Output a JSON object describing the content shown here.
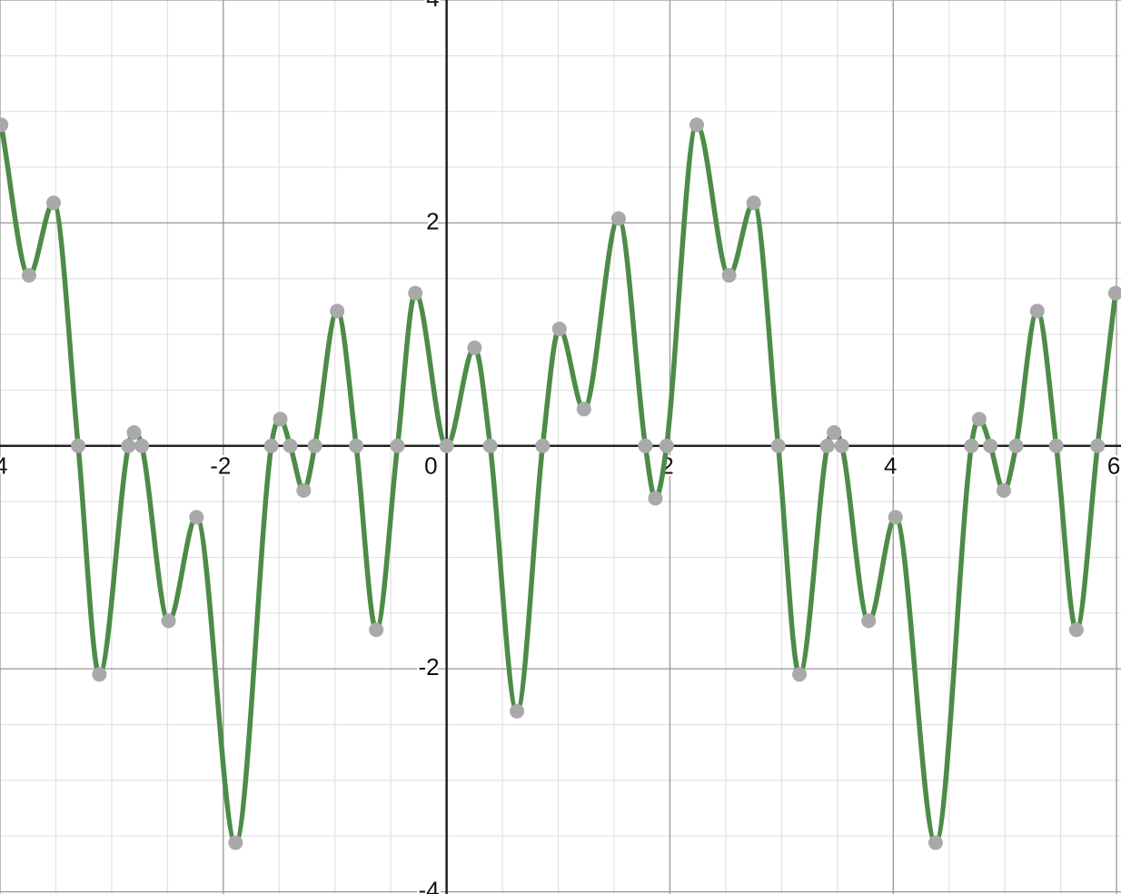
{
  "chart_data": {
    "type": "line",
    "xlim": [
      -4,
      6.04
    ],
    "ylim": [
      -4.02,
      4.0
    ],
    "xticks": [
      -4,
      -2,
      0,
      2,
      4,
      6
    ],
    "yticks": [
      -4,
      -2,
      0,
      2,
      4
    ],
    "grid": true,
    "series": [
      {
        "color": "#4c8c47",
        "point_color": "#a9a9a9",
        "x": [
          -3.99,
          -3.74,
          -3.52,
          -3.3,
          -3.11,
          -2.85,
          -2.8,
          -2.73,
          -2.49,
          -2.24,
          -1.89,
          -1.57,
          -1.49,
          -1.4,
          -1.28,
          -1.18,
          -0.98,
          -0.81,
          -0.63,
          -0.44,
          -0.28,
          0,
          0.25,
          0.39,
          0.63,
          0.86,
          1.01,
          1.23,
          1.54,
          1.78,
          1.87,
          1.97,
          2.24,
          2.53,
          2.75,
          2.97,
          3.16,
          3.41,
          3.47,
          3.54,
          3.78,
          4.02,
          4.38,
          4.7,
          4.77,
          4.87,
          4.99,
          5.1,
          5.29,
          5.46,
          5.64,
          5.83,
          5.99
        ],
        "values": [
          2.88,
          1.53,
          2.18,
          0,
          -2.05,
          0,
          0.12,
          0,
          -1.57,
          -0.64,
          -3.56,
          0,
          0.24,
          0,
          -0.4,
          0,
          1.21,
          0,
          -1.65,
          0,
          1.37,
          0,
          0.88,
          0,
          -2.38,
          0,
          1.05,
          0.33,
          2.04,
          0,
          -0.47,
          0,
          2.88,
          1.53,
          2.18,
          0,
          -2.05,
          0,
          0.12,
          0,
          -1.57,
          -0.64,
          -3.56,
          0,
          0.24,
          0,
          -0.4,
          0,
          1.21,
          0,
          -1.65,
          0,
          1.37
        ]
      }
    ]
  }
}
